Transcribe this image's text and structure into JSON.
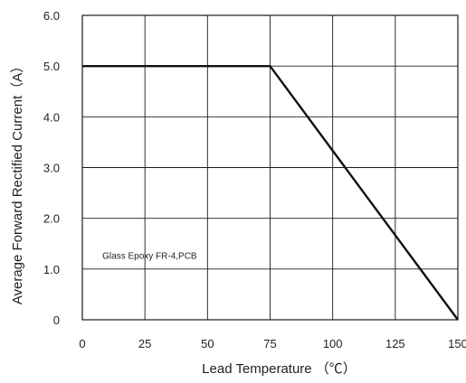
{
  "chart_data": {
    "type": "line",
    "title": "",
    "xlabel": "Lead Temperature （℃）",
    "ylabel": "Average Forward Rectified Current（A）",
    "xlim": [
      0,
      150
    ],
    "ylim": [
      0,
      6.0
    ],
    "x_ticks": [
      0,
      25,
      50,
      75,
      100,
      125,
      150
    ],
    "x_tick_labels": [
      "0",
      "25",
      "50",
      "75",
      "100",
      "125",
      "150"
    ],
    "y_ticks": [
      0,
      1,
      2,
      3,
      4,
      5,
      6
    ],
    "y_tick_labels": [
      "0",
      "1.0",
      "2.0",
      "3.0",
      "4.0",
      "5.0",
      "6.0"
    ],
    "grid": true,
    "series": [
      {
        "x": [
          0,
          75,
          150
        ],
        "y": [
          5.0,
          5.0,
          0
        ]
      }
    ],
    "annotations": [
      {
        "text": "Glass Epoxy FR-4,PCB",
        "x": 8,
        "y": 1.2
      }
    ],
    "colors": {
      "line": "#111111",
      "grid": "#1a1a1a",
      "frame": "#1a1a1a"
    }
  }
}
